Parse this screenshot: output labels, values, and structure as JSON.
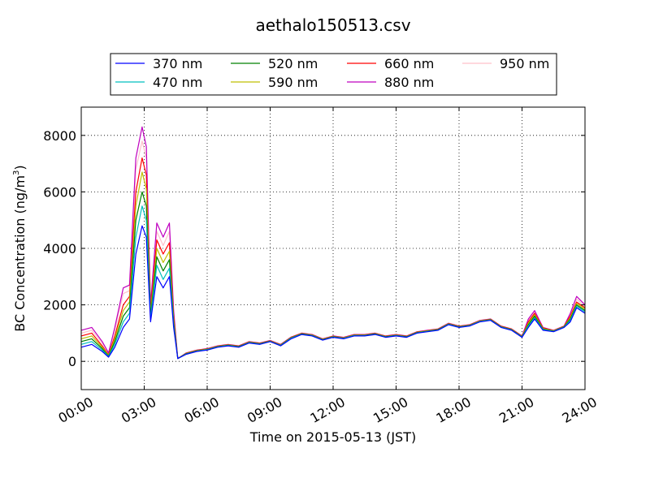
{
  "chart_data": {
    "type": "line",
    "title": "aethalo150513.csv",
    "xlabel": "Time on 2015-05-13 (JST)",
    "ylabel": "BC Concentration (ng/m³)",
    "ylabel_base": "BC Concentration (ng/m",
    "ylabel_sup": "3",
    "ylabel_end": ")",
    "xlim": [
      0,
      24
    ],
    "ylim": [
      -1000,
      9000
    ],
    "grid": true,
    "legend_position": "top, above plot",
    "x_ticks": [
      {
        "value": 0,
        "label": "00:00"
      },
      {
        "value": 3,
        "label": "03:00"
      },
      {
        "value": 6,
        "label": "06:00"
      },
      {
        "value": 9,
        "label": "09:00"
      },
      {
        "value": 12,
        "label": "12:00"
      },
      {
        "value": 15,
        "label": "15:00"
      },
      {
        "value": 18,
        "label": "18:00"
      },
      {
        "value": 21,
        "label": "21:00"
      },
      {
        "value": 24,
        "label": "24:00"
      }
    ],
    "y_ticks": [
      {
        "value": 0,
        "label": "0"
      },
      {
        "value": 2000,
        "label": "2000"
      },
      {
        "value": 4000,
        "label": "4000"
      },
      {
        "value": 6000,
        "label": "6000"
      },
      {
        "value": 8000,
        "label": "8000"
      }
    ],
    "x": [
      0,
      0.5,
      1.0,
      1.3,
      1.6,
      2.0,
      2.3,
      2.6,
      2.9,
      3.1,
      3.3,
      3.6,
      3.9,
      4.2,
      4.4,
      4.6,
      5.0,
      5.5,
      6.0,
      6.5,
      7.0,
      7.5,
      8.0,
      8.5,
      9.0,
      9.5,
      10.0,
      10.5,
      11.0,
      11.5,
      12.0,
      12.5,
      13.0,
      13.5,
      14.0,
      14.5,
      15.0,
      15.5,
      16.0,
      16.5,
      17.0,
      17.5,
      18.0,
      18.5,
      19.0,
      19.5,
      20.0,
      20.5,
      21.0,
      21.3,
      21.6,
      22.0,
      22.5,
      23.0,
      23.3,
      23.6,
      24.0
    ],
    "series": [
      {
        "name": "370 nm",
        "color": "#0000ff",
        "values": [
          500,
          600,
          350,
          150,
          500,
          1200,
          1500,
          3800,
          4800,
          4400,
          1400,
          3000,
          2600,
          3000,
          1200,
          100,
          250,
          350,
          400,
          500,
          550,
          500,
          650,
          600,
          700,
          550,
          800,
          950,
          900,
          750,
          850,
          800,
          900,
          900,
          950,
          850,
          900,
          850,
          1000,
          1050,
          1100,
          1300,
          1200,
          1250,
          1400,
          1450,
          1200,
          1100,
          850,
          1200,
          1500,
          1100,
          1050,
          1200,
          1400,
          1900,
          1700
        ]
      },
      {
        "name": "470 nm",
        "color": "#00bfbf",
        "values": [
          600,
          700,
          400,
          170,
          600,
          1400,
          1700,
          4400,
          5500,
          5000,
          1500,
          3400,
          2900,
          3300,
          1300,
          100,
          260,
          360,
          410,
          510,
          560,
          510,
          660,
          610,
          700,
          560,
          820,
          960,
          910,
          760,
          860,
          810,
          910,
          910,
          960,
          860,
          910,
          860,
          1010,
          1060,
          1110,
          1310,
          1210,
          1260,
          1410,
          1460,
          1210,
          1110,
          860,
          1250,
          1550,
          1120,
          1060,
          1210,
          1450,
          1950,
          1750
        ]
      },
      {
        "name": "520 nm",
        "color": "#008000",
        "values": [
          700,
          800,
          450,
          190,
          700,
          1600,
          1900,
          5000,
          6000,
          5500,
          1600,
          3700,
          3200,
          3600,
          1400,
          100,
          270,
          370,
          420,
          520,
          570,
          520,
          670,
          620,
          710,
          570,
          830,
          970,
          920,
          770,
          870,
          820,
          920,
          920,
          970,
          870,
          920,
          870,
          1020,
          1070,
          1120,
          1320,
          1220,
          1270,
          1420,
          1470,
          1220,
          1120,
          870,
          1300,
          1600,
          1140,
          1070,
          1220,
          1500,
          2000,
          1800
        ]
      },
      {
        "name": "590 nm",
        "color": "#bfbf00",
        "values": [
          800,
          900,
          500,
          210,
          800,
          1800,
          2100,
          5500,
          6700,
          6100,
          1700,
          4000,
          3500,
          3900,
          1500,
          100,
          280,
          380,
          430,
          530,
          580,
          530,
          680,
          630,
          720,
          580,
          840,
          980,
          930,
          780,
          880,
          830,
          930,
          930,
          980,
          880,
          930,
          880,
          1030,
          1080,
          1130,
          1330,
          1230,
          1280,
          1430,
          1480,
          1230,
          1130,
          880,
          1350,
          1650,
          1160,
          1080,
          1230,
          1550,
          2050,
          1850
        ]
      },
      {
        "name": "660 nm",
        "color": "#ff0000",
        "values": [
          900,
          1000,
          550,
          230,
          900,
          2000,
          2300,
          6000,
          7200,
          6600,
          1800,
          4300,
          3800,
          4200,
          1600,
          100,
          290,
          390,
          440,
          540,
          590,
          540,
          690,
          640,
          730,
          590,
          850,
          990,
          940,
          790,
          890,
          840,
          940,
          940,
          990,
          890,
          940,
          890,
          1040,
          1090,
          1140,
          1340,
          1240,
          1290,
          1440,
          1490,
          1240,
          1140,
          890,
          1400,
          1700,
          1180,
          1090,
          1240,
          1600,
          2100,
          1900
        ]
      },
      {
        "name": "880 nm",
        "color": "#bf00bf",
        "values": [
          1100,
          1200,
          700,
          300,
          1200,
          2600,
          2700,
          7200,
          8300,
          7600,
          2000,
          4900,
          4400,
          4900,
          1800,
          100,
          300,
          400,
          450,
          550,
          600,
          550,
          700,
          650,
          740,
          600,
          860,
          1000,
          950,
          800,
          900,
          850,
          950,
          950,
          1000,
          900,
          950,
          900,
          1050,
          1100,
          1150,
          1350,
          1250,
          1300,
          1450,
          1500,
          1250,
          1150,
          900,
          1500,
          1800,
          1200,
          1100,
          1250,
          1700,
          2300,
          2000
        ]
      },
      {
        "name": "950 nm",
        "color": "#ffc0cb",
        "values": [
          1000,
          1100,
          650,
          280,
          1100,
          2400,
          2500,
          6800,
          7800,
          7200,
          1900,
          4600,
          4100,
          4600,
          1700,
          100,
          290,
          390,
          440,
          540,
          590,
          540,
          690,
          640,
          730,
          590,
          850,
          990,
          940,
          790,
          890,
          840,
          940,
          940,
          990,
          890,
          940,
          890,
          1040,
          1090,
          1140,
          1340,
          1240,
          1290,
          1440,
          1490,
          1240,
          1140,
          890,
          1450,
          1750,
          1190,
          1090,
          1240,
          1650,
          2200,
          1950
        ]
      }
    ]
  }
}
